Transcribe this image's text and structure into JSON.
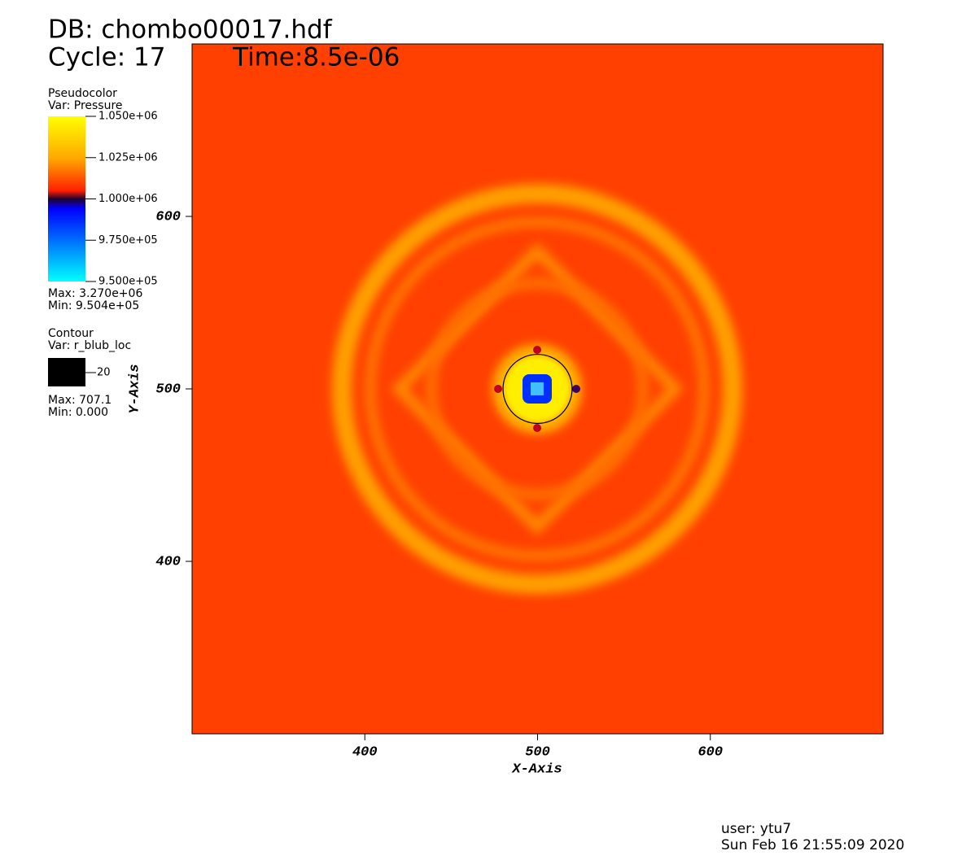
{
  "header": {
    "db": "DB: chombo00017.hdf",
    "cycle": "Cycle: 17",
    "time": "Time:8.5e-06"
  },
  "chart_data": {
    "type": "pseudocolor",
    "x_label": "X-Axis",
    "y_label": "Y-Axis",
    "xlim": [
      300,
      700
    ],
    "ylim": [
      300,
      700
    ],
    "xticks": [
      400,
      500,
      600
    ],
    "yticks": [
      400,
      500,
      600
    ],
    "pseudocolor": {
      "title": "Pseudocolor",
      "variable": "Var: Pressure",
      "colorbar_lim": [
        950000,
        1050000
      ],
      "ticks": [
        {
          "value": 1050000,
          "label": "1.050e+06"
        },
        {
          "value": 1025000,
          "label": "1.025e+06"
        },
        {
          "value": 1000000,
          "label": "1.000e+06"
        },
        {
          "value": 975000,
          "label": "9.750e+05"
        },
        {
          "value": 950000,
          "label": "9.500e+05"
        }
      ],
      "max": "Max: 3.270e+06",
      "min": "Min: 9.504e+05"
    },
    "contour": {
      "title": "Contour",
      "variable": "Var: r_blub_loc",
      "levels": [
        20
      ],
      "color": "#000000",
      "max": "Max: 707.1",
      "min": "Min: 0.000"
    }
  },
  "footer": {
    "user": "user: ytu7",
    "date": "Sun Feb 16 21:55:09 2020"
  }
}
